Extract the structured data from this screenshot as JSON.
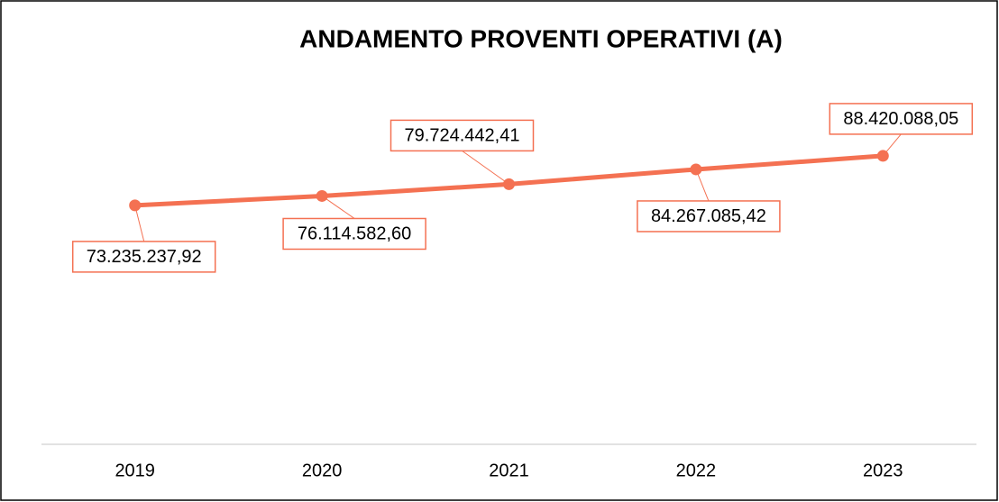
{
  "chart_data": {
    "type": "line",
    "title": "ANDAMENTO PROVENTI OPERATIVI (A)",
    "categories": [
      "2019",
      "2020",
      "2021",
      "2022",
      "2023"
    ],
    "values": [
      73235237.92,
      76114582.6,
      79724442.41,
      84267085.42,
      88420088.05
    ],
    "value_labels": [
      "73.235.237,92",
      "76.114.582,60",
      "79.724.442,41",
      "84.267.085,42",
      "88.420.088,05"
    ],
    "color": "#f47152",
    "ylim": [
      0,
      100000000
    ]
  }
}
